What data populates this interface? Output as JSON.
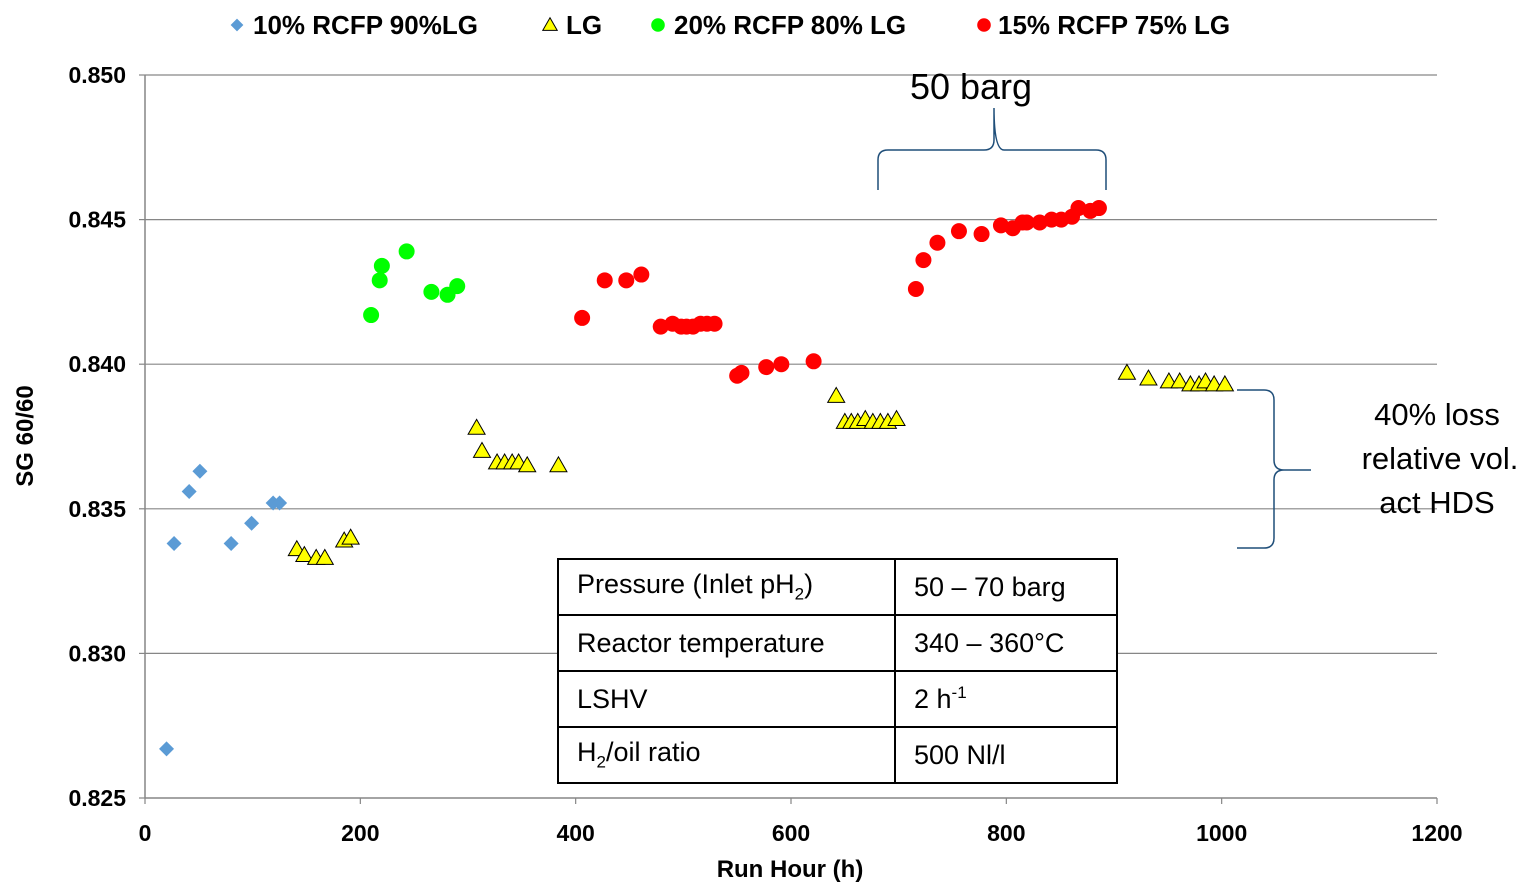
{
  "chart_data": {
    "type": "scatter",
    "title": "",
    "xlabel": "Run Hour (h)",
    "ylabel": "SG 60/60",
    "xlim": [
      0,
      1200
    ],
    "ylim": [
      0.825,
      0.85
    ],
    "x_ticks": [
      "0",
      "200",
      "400",
      "600",
      "800",
      "1000",
      "1200"
    ],
    "y_ticks": [
      "0.825",
      "0.830",
      "0.835",
      "0.840",
      "0.845",
      "0.850"
    ],
    "grid": "horizontal",
    "legend_position": "top",
    "series": [
      {
        "name": "10% RCFP 90%LG",
        "marker": "diamond",
        "color": "#5B9BD5",
        "points": [
          [
            20,
            0.8267
          ],
          [
            27,
            0.8338
          ],
          [
            41,
            0.8356
          ],
          [
            51,
            0.8363
          ],
          [
            80,
            0.8338
          ],
          [
            99,
            0.8345
          ],
          [
            119,
            0.8352
          ],
          [
            125,
            0.8352
          ]
        ]
      },
      {
        "name": "LG",
        "marker": "triangle",
        "color": "#FFFF00",
        "points": [
          [
            141,
            0.8336
          ],
          [
            148,
            0.8334
          ],
          [
            159,
            0.8333
          ],
          [
            167,
            0.8333
          ],
          [
            185,
            0.8339
          ],
          [
            191,
            0.834
          ],
          [
            308,
            0.8378
          ],
          [
            313,
            0.837
          ],
          [
            327,
            0.8366
          ],
          [
            334,
            0.8366
          ],
          [
            341,
            0.8366
          ],
          [
            347,
            0.8366
          ],
          [
            355,
            0.8365
          ],
          [
            384,
            0.8365
          ],
          [
            642,
            0.8389
          ],
          [
            650,
            0.838
          ],
          [
            656,
            0.838
          ],
          [
            662,
            0.838
          ],
          [
            669,
            0.8381
          ],
          [
            676,
            0.838
          ],
          [
            683,
            0.838
          ],
          [
            690,
            0.838
          ],
          [
            698,
            0.8381
          ],
          [
            912,
            0.8397
          ],
          [
            932,
            0.8395
          ],
          [
            951,
            0.8394
          ],
          [
            961,
            0.8394
          ],
          [
            971,
            0.8393
          ],
          [
            979,
            0.8393
          ],
          [
            985,
            0.8394
          ],
          [
            993,
            0.8393
          ],
          [
            1003,
            0.8393
          ]
        ]
      },
      {
        "name": "20% RCFP 80% LG",
        "marker": "circle",
        "color": "#00FF00",
        "points": [
          [
            210,
            0.8417
          ],
          [
            218,
            0.8429
          ],
          [
            220,
            0.8434
          ],
          [
            243,
            0.8439
          ],
          [
            266,
            0.8425
          ],
          [
            281,
            0.8424
          ],
          [
            290,
            0.8427
          ]
        ]
      },
      {
        "name": "15% RCFP 75% LG",
        "marker": "circle",
        "color": "#FF0000",
        "points": [
          [
            406,
            0.8416
          ],
          [
            427,
            0.8429
          ],
          [
            447,
            0.8429
          ],
          [
            461,
            0.8431
          ],
          [
            479,
            0.8413
          ],
          [
            490,
            0.8414
          ],
          [
            498,
            0.8413
          ],
          [
            503,
            0.8413
          ],
          [
            509,
            0.8413
          ],
          [
            516,
            0.8414
          ],
          [
            522,
            0.8414
          ],
          [
            529,
            0.8414
          ],
          [
            550,
            0.8396
          ],
          [
            554,
            0.8397
          ],
          [
            577,
            0.8399
          ],
          [
            591,
            0.84
          ],
          [
            621,
            0.8401
          ],
          [
            716,
            0.8426
          ],
          [
            723,
            0.8436
          ],
          [
            736,
            0.8442
          ],
          [
            756,
            0.8446
          ],
          [
            777,
            0.8445
          ],
          [
            795,
            0.8448
          ],
          [
            806,
            0.8447
          ],
          [
            815,
            0.8449
          ],
          [
            819,
            0.8449
          ],
          [
            831,
            0.8449
          ],
          [
            842,
            0.845
          ],
          [
            851,
            0.845
          ],
          [
            861,
            0.8451
          ],
          [
            867,
            0.8454
          ],
          [
            878,
            0.8453
          ],
          [
            886,
            0.8454
          ]
        ]
      }
    ],
    "annotations": {
      "pressure_label": "50 barg",
      "loss_label": [
        "40% loss",
        "relative vol.",
        "act HDS"
      ]
    }
  },
  "table": {
    "rows": [
      {
        "param": "Pressure (Inlet pH",
        "param_sub": "2",
        "param_after": ")",
        "value": "50 – 70 barg"
      },
      {
        "param": "Reactor temperature",
        "value": "340 – 360°C"
      },
      {
        "param": "LSHV",
        "value": "2 h",
        "value_sup": "-1"
      },
      {
        "param": "H",
        "param_sub": "2",
        "param_after": "/oil ratio",
        "value": "500 Nl/l"
      }
    ]
  }
}
